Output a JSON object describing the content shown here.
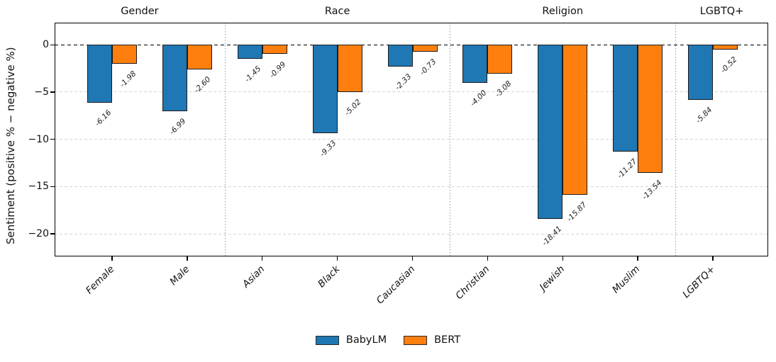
{
  "chart_data": {
    "type": "bar",
    "title": "",
    "ylabel": "Sentiment (positive % − negative %)",
    "xlabel": "",
    "categories": [
      "Female",
      "Male",
      "Asian",
      "Black",
      "Caucasian",
      "Christian",
      "Jewish",
      "Muslim",
      "LGBTQ+"
    ],
    "sections": [
      {
        "label": "Gender",
        "count": 2
      },
      {
        "label": "Race",
        "count": 3
      },
      {
        "label": "Religion",
        "count": 3
      },
      {
        "label": "LGBTQ+",
        "count": 1
      }
    ],
    "series": [
      {
        "name": "BabyLM",
        "color": "#1f77b4",
        "values": [
          -6.16,
          -6.99,
          -1.45,
          -9.33,
          -2.33,
          -4.0,
          -18.41,
          -11.27,
          -5.84
        ],
        "labels": [
          "-6.16",
          "-6.99",
          "-1.45",
          "-9.33",
          "-2.33",
          "-4.00",
          "-18.41",
          "-11.27",
          "-5.84"
        ]
      },
      {
        "name": "BERT",
        "color": "#ff7f0e",
        "values": [
          -1.98,
          -2.6,
          -0.99,
          -5.02,
          -0.73,
          -3.08,
          -15.87,
          -13.54,
          -0.52
        ],
        "labels": [
          "-1.98",
          "-2.60",
          "-0.99",
          "-5.02",
          "-0.73",
          "-3.08",
          "-15.87",
          "-13.54",
          "-0.52"
        ]
      }
    ],
    "yticks": [
      {
        "value": 0,
        "label": "0"
      },
      {
        "value": -5,
        "label": "−5"
      },
      {
        "value": -10,
        "label": "−10"
      },
      {
        "value": -15,
        "label": "−15"
      },
      {
        "value": -20,
        "label": "−20"
      }
    ],
    "ylim": [
      -22.4,
      2.35
    ],
    "zero_line_style": "black-dashed",
    "grid": "horizontal-dashed",
    "section_separator_style": "gray-dotted-vertical",
    "legend_position": "bottom-center"
  }
}
